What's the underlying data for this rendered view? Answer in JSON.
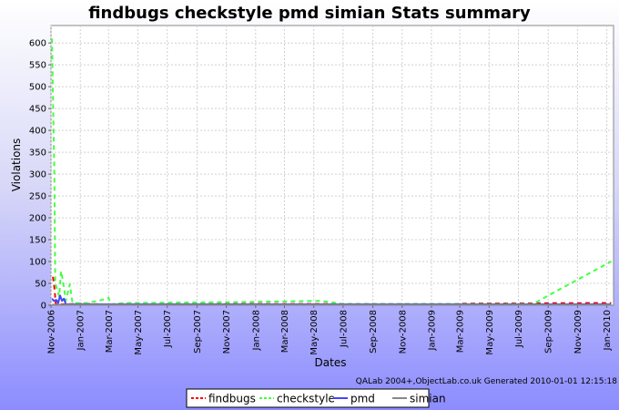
{
  "chart_data": {
    "type": "line",
    "title": "findbugs checkstyle pmd simian  Stats summary",
    "xlabel": "Dates",
    "ylabel": "Violations",
    "ylim": [
      0,
      640
    ],
    "yticks": [
      0,
      50,
      100,
      150,
      200,
      250,
      300,
      350,
      400,
      450,
      500,
      550,
      600
    ],
    "xlim": [
      "2006-11-01",
      "2010-01-15"
    ],
    "xticks": [
      {
        "date": "2006-11-01",
        "label": "Nov-2006"
      },
      {
        "date": "2007-01-01",
        "label": "Jan-2007"
      },
      {
        "date": "2007-03-01",
        "label": "Mar-2007"
      },
      {
        "date": "2007-05-01",
        "label": "May-2007"
      },
      {
        "date": "2007-07-01",
        "label": "Jul-2007"
      },
      {
        "date": "2007-09-01",
        "label": "Sep-2007"
      },
      {
        "date": "2007-11-01",
        "label": "Nov-2007"
      },
      {
        "date": "2008-01-01",
        "label": "Jan-2008"
      },
      {
        "date": "2008-03-01",
        "label": "Mar-2008"
      },
      {
        "date": "2008-05-01",
        "label": "May-2008"
      },
      {
        "date": "2008-07-01",
        "label": "Jul-2008"
      },
      {
        "date": "2008-09-01",
        "label": "Sep-2008"
      },
      {
        "date": "2008-11-01",
        "label": "Nov-2008"
      },
      {
        "date": "2009-01-01",
        "label": "Jan-2009"
      },
      {
        "date": "2009-03-01",
        "label": "Mar-2009"
      },
      {
        "date": "2009-05-01",
        "label": "May-2009"
      },
      {
        "date": "2009-07-01",
        "label": "Jul-2009"
      },
      {
        "date": "2009-09-01",
        "label": "Sep-2009"
      },
      {
        "date": "2009-11-01",
        "label": "Nov-2009"
      },
      {
        "date": "2010-01-01",
        "label": "Jan-2010"
      }
    ],
    "grid": true,
    "legend_position": "bottom",
    "series": [
      {
        "name": "findbugs",
        "color": "#ff0000",
        "style": "dashed",
        "points": [
          [
            "2006-11-05",
            65
          ],
          [
            "2006-11-07",
            50
          ],
          [
            "2006-11-09",
            30
          ],
          [
            "2006-11-11",
            2
          ],
          [
            "2006-11-25",
            2
          ],
          [
            "2006-12-05",
            2
          ],
          [
            "2006-12-20",
            3
          ],
          [
            "2007-01-15",
            3
          ],
          [
            "2007-02-15",
            2
          ],
          [
            "2007-03-10",
            2
          ],
          [
            "2007-04-01",
            3
          ],
          [
            "2008-07-01",
            3
          ],
          [
            "2009-02-20",
            3
          ],
          [
            "2009-03-05",
            4
          ],
          [
            "2010-01-10",
            5
          ]
        ]
      },
      {
        "name": "checkstyle",
        "color": "#44ff44",
        "style": "dashed",
        "points": [
          [
            "2006-11-03",
            610
          ],
          [
            "2006-11-08",
            300
          ],
          [
            "2006-11-10",
            50
          ],
          [
            "2006-11-18",
            20
          ],
          [
            "2006-11-22",
            78
          ],
          [
            "2006-11-26",
            55
          ],
          [
            "2006-12-02",
            10
          ],
          [
            "2006-12-10",
            48
          ],
          [
            "2006-12-16",
            5
          ],
          [
            "2007-01-15",
            5
          ],
          [
            "2007-02-15",
            12
          ],
          [
            "2007-03-01",
            17
          ],
          [
            "2007-03-05",
            2
          ],
          [
            "2007-04-01",
            5
          ],
          [
            "2007-12-01",
            7
          ],
          [
            "2008-05-15",
            10
          ],
          [
            "2008-07-01",
            3
          ],
          [
            "2008-11-01",
            3
          ],
          [
            "2009-08-01",
            3
          ],
          [
            "2009-09-01",
            22
          ],
          [
            "2010-01-10",
            100
          ]
        ]
      },
      {
        "name": "pmd",
        "color": "#4444ff",
        "style": "solid",
        "points": [
          [
            "2006-11-03",
            15
          ],
          [
            "2006-11-07",
            10
          ],
          [
            "2006-11-12",
            12
          ],
          [
            "2006-11-16",
            5
          ],
          [
            "2006-11-20",
            22
          ],
          [
            "2006-11-24",
            10
          ],
          [
            "2006-11-28",
            15
          ],
          [
            "2006-12-02",
            2
          ],
          [
            "2007-01-01",
            2
          ],
          [
            "2010-01-10",
            2
          ]
        ]
      },
      {
        "name": "simian",
        "color": "#888888",
        "style": "solid",
        "points": [
          [
            "2006-11-03",
            1
          ],
          [
            "2010-01-10",
            1
          ]
        ]
      }
    ],
    "footer": "QALab 2004+,ObjectLab.co.uk  Generated 2010-01-01 12:15:18"
  }
}
